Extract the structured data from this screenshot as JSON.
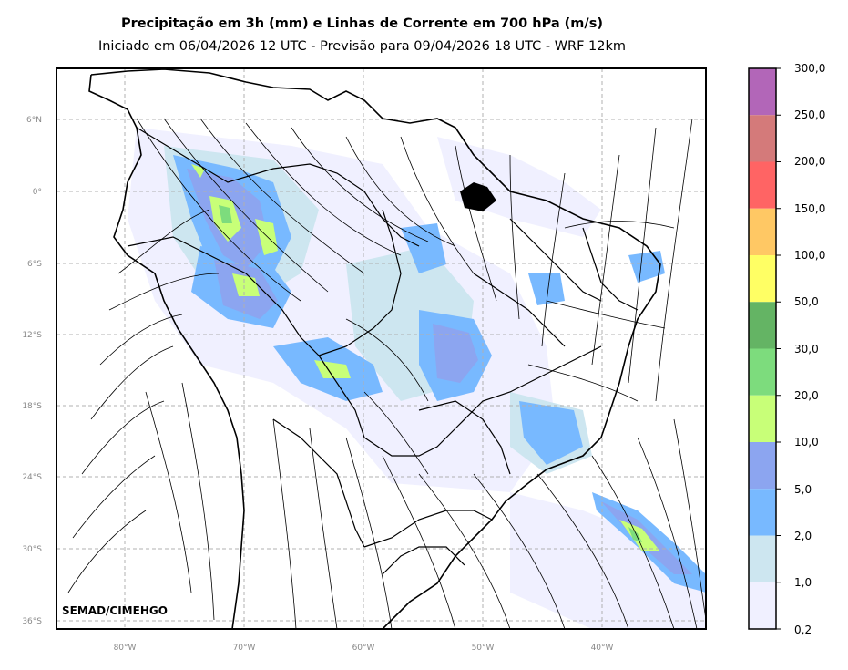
{
  "title": "Precipitação em 3h (mm) e Linhas de Corrente em 700 hPa (m/s)",
  "subtitle": "Iniciado em 06/04/2026 12 UTC - Previsão para 09/04/2026 18 UTC - WRF 12km",
  "credit": "SEMAD/CIMEHGO",
  "lat_ticks": [
    "6°N",
    "0°",
    "6°S",
    "12°S",
    "18°S",
    "24°S",
    "30°S",
    "36°S"
  ],
  "lon_ticks": [
    "80°W",
    "70°W",
    "60°W",
    "50°W",
    "40°W"
  ],
  "colorbar": {
    "labels": [
      "300,0",
      "250,0",
      "200,0",
      "150,0",
      "100,0",
      "50,0",
      "30,0",
      "20,0",
      "10,0",
      "5,0",
      "2,0",
      "1,0",
      "0,2"
    ],
    "colors": [
      "#b266b8",
      "#d47a7a",
      "#ff6464",
      "#ffc864",
      "#ffff64",
      "#64b464",
      "#7ddc7d",
      "#c8ff78",
      "#8ca5f0",
      "#78b9ff",
      "#cde6f0",
      "#f0f0ff"
    ]
  },
  "colors": {
    "frame": "#000000",
    "grid": "#b0b0b0",
    "stream": "#000000"
  }
}
